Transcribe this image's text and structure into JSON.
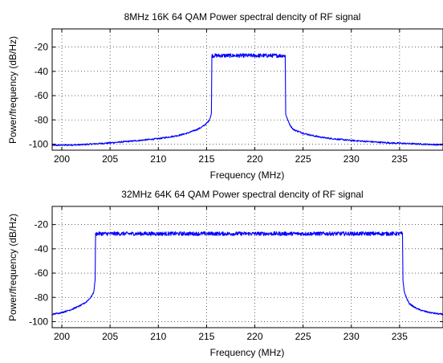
{
  "chart_data": [
    {
      "type": "line",
      "title": "8MHz 16K 64 QAM Power spectral dencity of RF signal",
      "xlabel": "Frequency (MHz)",
      "ylabel": "Power/frequency (dB/Hz)",
      "xlim": [
        199,
        239.5
      ],
      "ylim": [
        -105,
        -5
      ],
      "x_ticks": [
        200,
        205,
        210,
        215,
        220,
        225,
        230,
        235
      ],
      "y_ticks": [
        -100,
        -80,
        -60,
        -40,
        -20
      ],
      "grid": "dotted",
      "series_color": "#0000ff",
      "band": {
        "lower_edge": 215.5,
        "upper_edge": 223.2,
        "inband_level": -27
      },
      "series": [
        {
          "x": [
            199,
            202,
            205,
            208,
            210,
            212,
            213,
            214,
            214.5,
            215,
            215.3,
            215.5,
            215.55,
            223.15,
            223.2,
            223.4,
            223.7,
            224,
            225,
            226,
            227,
            228,
            230,
            232,
            234,
            236,
            238,
            239.5
          ],
          "y": [
            -101,
            -100.5,
            -99,
            -97,
            -95.5,
            -93,
            -91,
            -88,
            -86,
            -83,
            -80,
            -75,
            -27,
            -27,
            -75,
            -80,
            -85,
            -88,
            -91,
            -93,
            -94.5,
            -95.5,
            -97,
            -98,
            -99,
            -99.6,
            -100.2,
            -100.6
          ]
        }
      ]
    },
    {
      "type": "line",
      "title": "32MHz 64K 64 QAM Power spectral dencity of RF signal",
      "xlabel": "Frequency (MHz)",
      "ylabel": "Power/frequency (dB/Hz)",
      "xlim": [
        199,
        239.5
      ],
      "ylim": [
        -105,
        -5
      ],
      "x_ticks": [
        200,
        205,
        210,
        215,
        220,
        225,
        230,
        235
      ],
      "y_ticks": [
        -100,
        -80,
        -60,
        -40,
        -20
      ],
      "grid": "dotted",
      "series_color": "#0000ff",
      "band": {
        "lower_edge": 203.5,
        "upper_edge": 235.3,
        "inband_level": -27.5
      },
      "series": [
        {
          "x": [
            199,
            200,
            201,
            202,
            202.5,
            203,
            203.3,
            203.45,
            203.5,
            235.3,
            235.35,
            235.5,
            235.8,
            236,
            236.5,
            237,
            237.5,
            238,
            238.5,
            239,
            239.5
          ],
          "y": [
            -94,
            -92.5,
            -90,
            -86.5,
            -84,
            -80,
            -76,
            -66,
            -27.5,
            -27.5,
            -66,
            -76,
            -82,
            -85,
            -88,
            -90,
            -91.3,
            -92.3,
            -93,
            -93.6,
            -94
          ]
        }
      ]
    }
  ]
}
